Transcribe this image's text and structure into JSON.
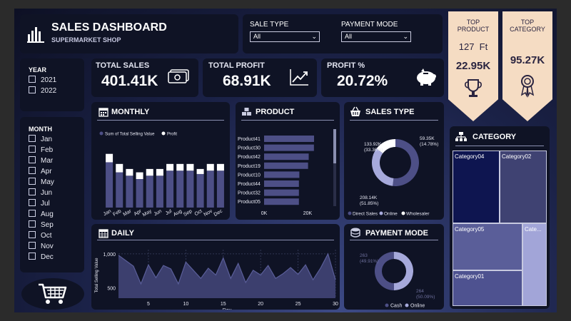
{
  "header": {
    "title": "SALES DASHBOARD",
    "subtitle": "SUPERMARKET SHOP"
  },
  "filters": {
    "sale_type": {
      "label": "SALE TYPE",
      "value": "All"
    },
    "payment_mode": {
      "label": "PAYMENT MODE",
      "value": "All"
    }
  },
  "ribbons": {
    "top_product": {
      "label_line1": "TOP",
      "label_line2": "PRODUCT",
      "qty": "127  Ft",
      "value": "22.95K"
    },
    "top_category": {
      "label_line1": "TOP",
      "label_line2": "CATEGORY",
      "value": "95.27K"
    }
  },
  "year_slicer": {
    "title": "YEAR",
    "items": [
      "2021",
      "2022"
    ]
  },
  "month_slicer": {
    "title": "MONTH",
    "items": [
      "Jan",
      "Feb",
      "Mar",
      "Apr",
      "May",
      "Jun",
      "Jul",
      "Aug",
      "Sep",
      "Oct",
      "Nov",
      "Dec"
    ]
  },
  "kpis": {
    "total_sales": {
      "label": "TOTAL SALES",
      "value": "401.41K"
    },
    "total_profit": {
      "label": "TOTAL PROFIT",
      "value": "68.91K"
    },
    "profit_pct": {
      "label": "PROFIT %",
      "value": "20.72%"
    }
  },
  "colors": {
    "accent": "#4d4f86",
    "light": "#a6a9db",
    "profit": "#ffffff",
    "ribbon": "#f5dcc3",
    "bg": "#0f1325"
  },
  "chart_data": [
    {
      "id": "monthly",
      "type": "bar",
      "title": "MONTHLY",
      "legend": [
        "Sum of Total Selling Value",
        "Profit"
      ],
      "categories": [
        "Jan",
        "Feb",
        "Mar",
        "Apr",
        "May",
        "Jun",
        "Jul",
        "Aug",
        "Sep",
        "Oct",
        "Nov",
        "Dec"
      ],
      "series": [
        {
          "name": "Sum of Total Selling Value",
          "values": [
            27,
            21,
            19,
            17,
            19,
            19,
            22,
            22,
            22,
            20,
            22,
            22
          ]
        },
        {
          "name": "Profit",
          "values": [
            5,
            5,
            4,
            4,
            4,
            4,
            4,
            4,
            4,
            3,
            4,
            4
          ]
        }
      ]
    },
    {
      "id": "product",
      "type": "bar",
      "orientation": "horizontal",
      "title": "PRODUCT",
      "categories": [
        "Product41",
        "Product30",
        "Product42",
        "Product19",
        "Product10",
        "Product44",
        "Product32",
        "Product05"
      ],
      "values": [
        22.95,
        22.9,
        20.5,
        20.2,
        16.2,
        16.0,
        16.0,
        16.0
      ],
      "xticks": [
        "0K",
        "20K"
      ],
      "xlim": [
        0,
        28
      ]
    },
    {
      "id": "sales_type",
      "type": "pie",
      "title": "SALES TYPE",
      "donut": true,
      "labels": [
        "Direct Sales",
        "Online",
        "Wholesaler"
      ],
      "values": [
        208.14,
        133.92,
        59.35
      ],
      "value_labels": [
        "208.14K",
        "133.92K",
        "59.35K"
      ],
      "pct_labels": [
        "(51.85%)",
        "(33.36%)",
        "(14.78%)"
      ],
      "colors": [
        "#4d4f86",
        "#a6a9db",
        "#ffffff"
      ]
    },
    {
      "id": "daily",
      "type": "area",
      "title": "DAILY",
      "xlabel": "Day",
      "ylabel": "Total Selling Value",
      "yticks": [
        "1,000",
        "500"
      ],
      "xticks": [
        "5",
        "10",
        "15",
        "20",
        "25",
        "30"
      ],
      "ylim": [
        350,
        1020
      ],
      "x": [
        1,
        2,
        3,
        4,
        5,
        6,
        7,
        8,
        9,
        10,
        11,
        12,
        13,
        14,
        15,
        16,
        17,
        18,
        19,
        20,
        21,
        22,
        23,
        24,
        25,
        26,
        27,
        28,
        29,
        30
      ],
      "values": [
        980,
        900,
        820,
        560,
        840,
        650,
        830,
        780,
        560,
        880,
        760,
        640,
        790,
        690,
        940,
        640,
        860,
        580,
        760,
        690,
        830,
        640,
        710,
        800,
        700,
        840,
        620,
        790,
        1000,
        620
      ]
    },
    {
      "id": "payment_mode",
      "type": "pie",
      "title": "PAYMENT MODE",
      "donut": true,
      "labels": [
        "Cash",
        "Online"
      ],
      "values": [
        263,
        264
      ],
      "value_labels": [
        "263",
        "264"
      ],
      "pct_labels": [
        "(49.91%)",
        "(50.09%)"
      ],
      "colors": [
        "#4d4f86",
        "#a6a9db"
      ]
    },
    {
      "id": "category",
      "type": "treemap",
      "title": "CATEGORY",
      "labels": [
        "Category04",
        "Category02",
        "Category05",
        "Category03",
        "Category01"
      ],
      "tile_labels": [
        "Category04",
        "Category02",
        "Category05",
        "Cate...",
        "Category01"
      ]
    }
  ]
}
